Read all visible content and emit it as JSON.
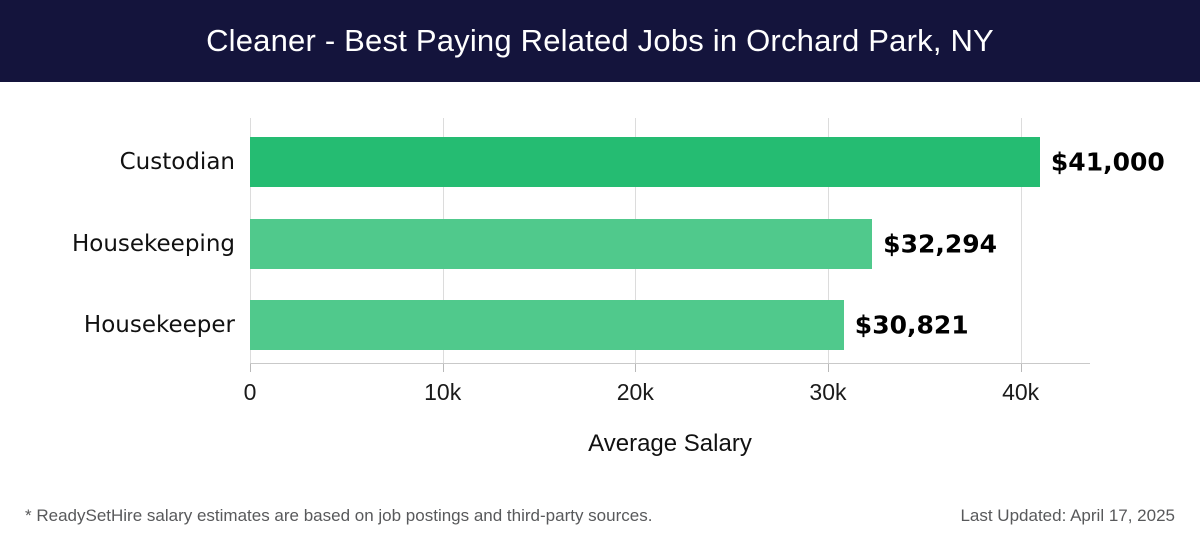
{
  "header": {
    "title": "Cleaner - Best Paying Related Jobs in Orchard Park, NY",
    "bg_color": "#14143c",
    "text_color": "#ffffff"
  },
  "chart_data": {
    "type": "bar",
    "orientation": "horizontal",
    "title": "Cleaner - Best Paying Related Jobs in Orchard Park, NY",
    "categories": [
      "Custodian",
      "Housekeeping",
      "Housekeeper"
    ],
    "values": [
      41000,
      32294,
      30821
    ],
    "value_labels": [
      "$41,000",
      "$32,294",
      "$30,821"
    ],
    "bar_colors": [
      "#25bc72",
      "#50c98c",
      "#50c98c"
    ],
    "xlabel": "Average Salary",
    "ylabel": "",
    "xlim": [
      0,
      43600
    ],
    "x_ticks": [
      0,
      10000,
      20000,
      30000,
      40000
    ],
    "x_tick_labels": [
      "0",
      "10k",
      "20k",
      "30k",
      "40k"
    ],
    "grid": "vertical-gridlines-on",
    "gridline_color": "#dcdcdc",
    "legend": "none"
  },
  "footer": {
    "disclaimer": "* ReadySetHire salary estimates are based on job postings and third-party sources.",
    "last_updated": "Last Updated: April 17, 2025"
  }
}
